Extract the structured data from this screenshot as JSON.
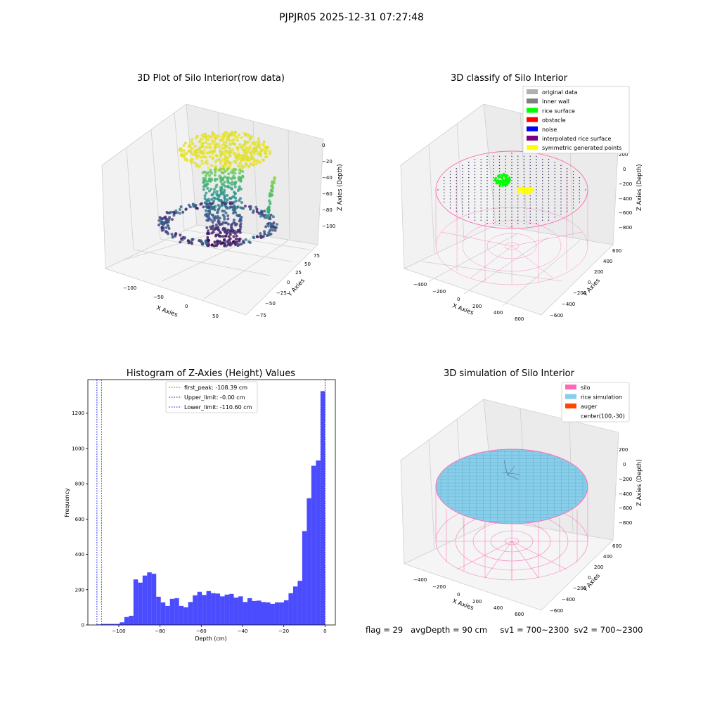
{
  "suptitle": "PJPJR05 2025-12-31 07:27:48",
  "status": "flag = 29   avgDepth = 90 cm     sv1 = 700~2300  sv2 = 700~2300",
  "panels": {
    "raw": {
      "title": "3D Plot of Silo Interior(row data)",
      "xlabel": "X Axies",
      "ylabel": "Y Axies",
      "zlabel": "Z Axies (Depth)",
      "x_ticks": [
        "−100",
        "−50",
        "0",
        "50"
      ],
      "y_ticks": [
        "−75",
        "−50",
        "−25",
        "0",
        "25",
        "50",
        "75"
      ],
      "z_ticks": [
        "0",
        "−20",
        "−40",
        "−60",
        "−80",
        "−100"
      ]
    },
    "classify": {
      "title": "3D classify of Silo Interior",
      "xlabel": "X Axies",
      "ylabel": "Y Axies",
      "zlabel": "Z Axies (Depth)",
      "x_ticks": [
        "−400",
        "−200",
        "0",
        "200",
        "400",
        "600"
      ],
      "y_ticks": [
        "−600",
        "−400",
        "−200",
        "0",
        "200",
        "400",
        "600"
      ],
      "z_ticks": [
        "200",
        "0",
        "−200",
        "−400",
        "−600",
        "−800"
      ],
      "legend": [
        {
          "label": "original data",
          "color": "#b0b0b0"
        },
        {
          "label": "inner wall",
          "color": "#808080"
        },
        {
          "label": "rice surface",
          "color": "#00ff00"
        },
        {
          "label": "obstacle",
          "color": "#ff0000"
        },
        {
          "label": "noise",
          "color": "#0000ff"
        },
        {
          "label": "interpolated rice surface",
          "color": "#800080"
        },
        {
          "label": "symmetric generated points",
          "color": "#ffff00"
        }
      ]
    },
    "simulation": {
      "title": "3D simulation of Silo Interior",
      "xlabel": "X Axies",
      "ylabel": "Y Axies",
      "zlabel": "Z Axies (Depth)",
      "x_ticks": [
        "−400",
        "−200",
        "0",
        "200",
        "400",
        "600"
      ],
      "y_ticks": [
        "−600",
        "−400",
        "−200",
        "0",
        "200",
        "400",
        "600"
      ],
      "z_ticks": [
        "200",
        "0",
        "−200",
        "−400",
        "−600",
        "−800"
      ],
      "legend": [
        {
          "label": "silo",
          "color": "#ff69b4"
        },
        {
          "label": "rice simulation",
          "color": "#87ceeb"
        },
        {
          "label": "auger",
          "color": "#ff4500"
        },
        {
          "label": "center(100,-30)",
          "color": ""
        }
      ]
    }
  },
  "chart_data": {
    "type": "bar",
    "title": "Histogram of Z-Axies (Height) Values",
    "xlabel": "Depth (cm)",
    "ylabel": "Frequency",
    "xlim": [
      -115,
      5
    ],
    "ylim": [
      0,
      1390
    ],
    "x_ticks": [
      -100,
      -80,
      -60,
      -40,
      -20,
      0
    ],
    "x_tick_labels": [
      "−100",
      "−80",
      "−60",
      "−40",
      "−20",
      "0"
    ],
    "y_ticks": [
      0,
      200,
      400,
      600,
      800,
      1000,
      1200
    ],
    "y_tick_labels": [
      "0",
      "200",
      "400",
      "600",
      "800",
      "1000",
      "1200"
    ],
    "bar_color": "#0000ff",
    "bin_start": -110.6,
    "bin_width": 2.212,
    "values": [
      3,
      6,
      6,
      6,
      6,
      15,
      45,
      52,
      258,
      240,
      280,
      298,
      290,
      160,
      128,
      108,
      148,
      152,
      108,
      100,
      130,
      168,
      188,
      170,
      192,
      180,
      178,
      162,
      172,
      176,
      155,
      162,
      130,
      152,
      136,
      138,
      130,
      128,
      120,
      128,
      128,
      140,
      180,
      218,
      250,
      532,
      718,
      902,
      932,
      1325
    ],
    "lines": [
      {
        "label": "first_peak: -108.39 cm",
        "x": -108.39,
        "color": "#ff0000"
      },
      {
        "label": "Upper_limit: -0.00 cm",
        "x": 0.0,
        "color": "#00008b"
      },
      {
        "label": "Lower_limit: -110.60 cm",
        "x": -110.6,
        "color": "#0000ff"
      }
    ]
  }
}
